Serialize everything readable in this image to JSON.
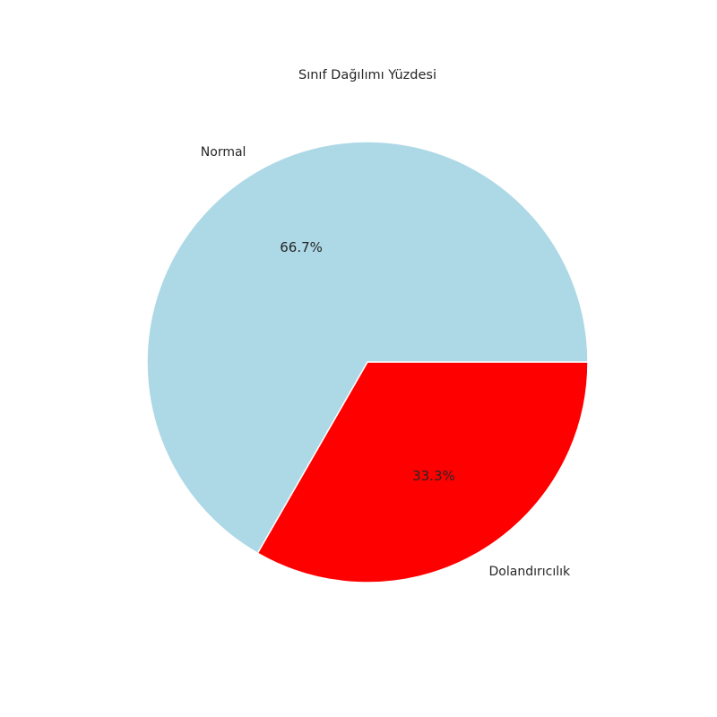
{
  "chart_data": {
    "type": "pie",
    "title": "Sınıf Dağılımı Yüzdesi",
    "start_angle_deg": 0,
    "direction": "counterclockwise",
    "slices": [
      {
        "label": "Normal",
        "value": 66.7,
        "pct_label": "66.7%",
        "color": "#add8e6"
      },
      {
        "label": "Dolandırıcılık",
        "value": 33.3,
        "pct_label": "33.3%",
        "color": "#ff0000"
      }
    ],
    "legend": "none"
  }
}
